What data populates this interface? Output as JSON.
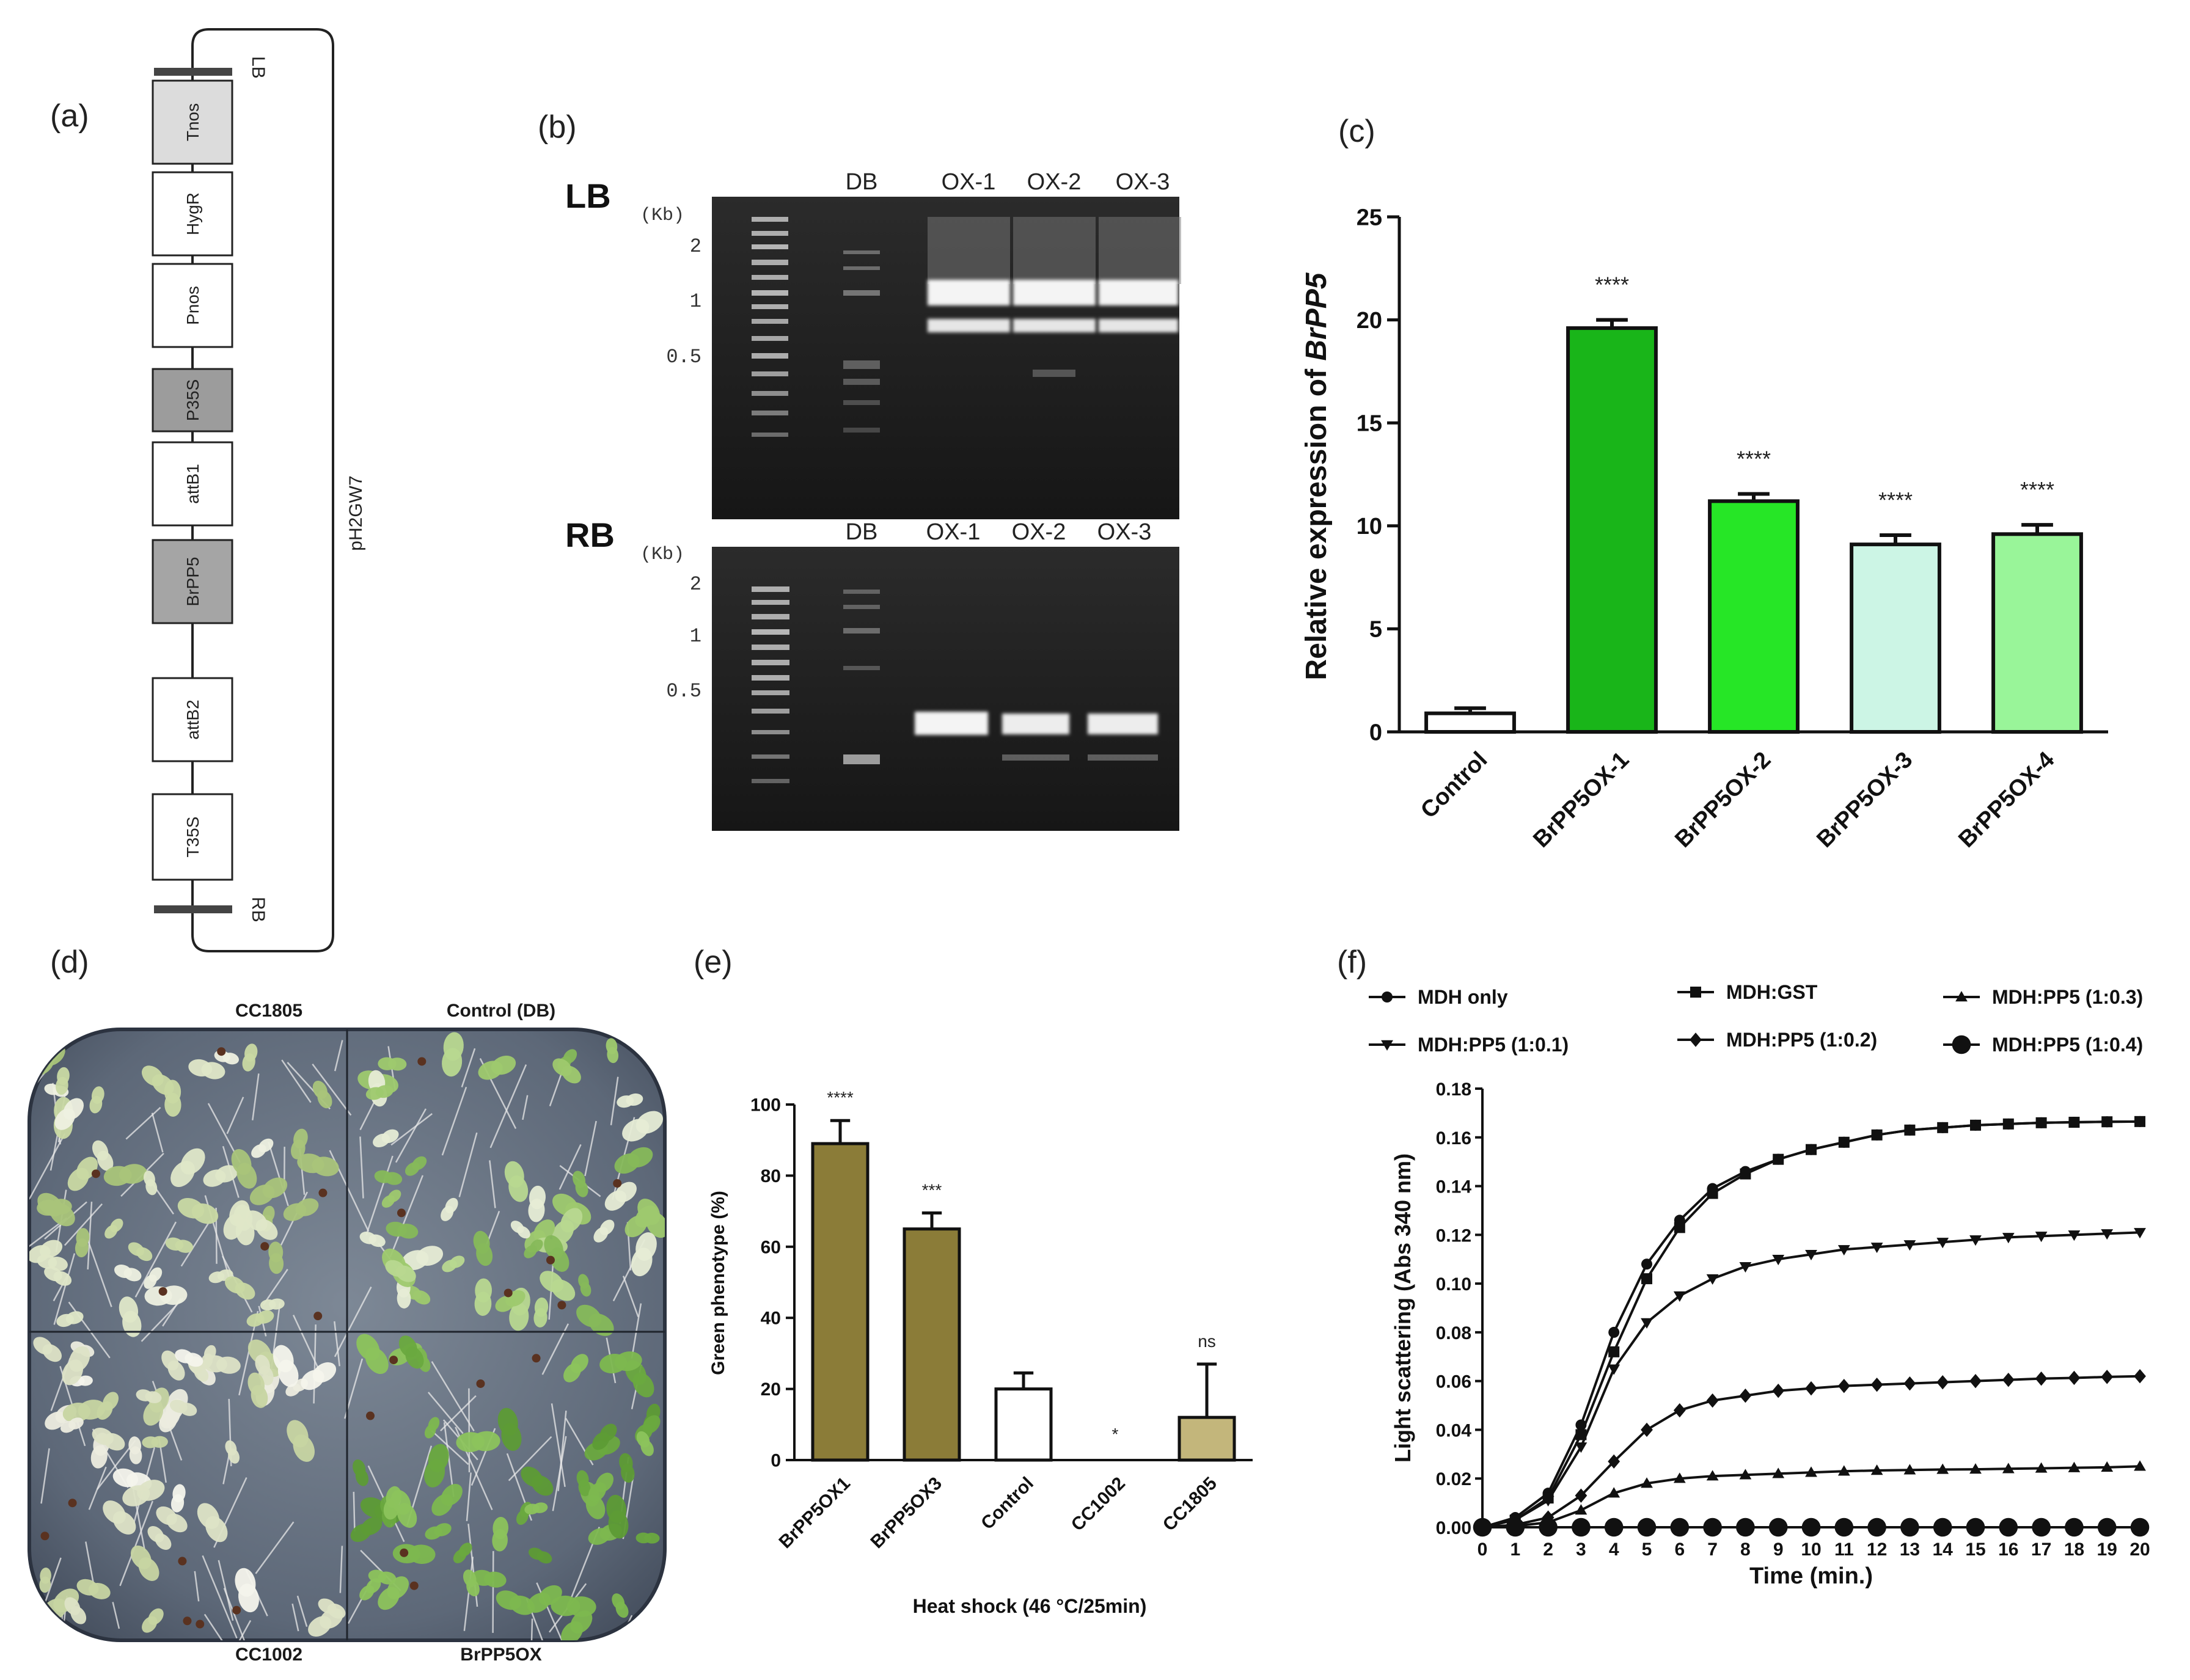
{
  "panels": {
    "a": {
      "label": "(a)",
      "blocks": [
        "Tnos",
        "HygR",
        "Pnos",
        "P35S",
        "attB1",
        "BrPP5",
        "attB2",
        "T35S"
      ],
      "lb": "LB",
      "rb": "RB",
      "vector": "pH2GW7"
    },
    "b": {
      "label": "(b)",
      "lb_gel": {
        "title": "LB",
        "unit": "(Kb)",
        "ladder": [
          "2",
          "1",
          "0.5"
        ],
        "lanes": [
          "DB",
          "OX-1",
          "OX-2",
          "OX-3"
        ]
      },
      "rb_gel": {
        "title": "RB",
        "unit": "(Kb)",
        "ladder": [
          "2",
          "1",
          "0.5"
        ],
        "lanes": [
          "DB",
          "OX-1",
          "OX-2",
          "OX-3"
        ]
      }
    },
    "c": {
      "label": "(c)"
    },
    "d": {
      "label": "(d)",
      "quadrants": [
        "CC1805",
        "Control (DB)",
        "CC1002",
        "BrPP5OX"
      ]
    },
    "e": {
      "label": "(e)"
    },
    "f": {
      "label": "(f)"
    }
  },
  "chart_data": [
    {
      "id": "c",
      "type": "bar",
      "categories": [
        "Control",
        "BrPP5OX-1",
        "BrPP5OX-2",
        "BrPP5OX-3",
        "BrPP5OX-4"
      ],
      "values": [
        0.9,
        19.6,
        11.2,
        9.1,
        9.6
      ],
      "errors": [
        0.25,
        0.4,
        0.35,
        0.45,
        0.45
      ],
      "significance": [
        "",
        "****",
        "****",
        "****",
        "****"
      ],
      "colors": [
        "#ffffff",
        "#19b519",
        "#26e626",
        "#ccf5e5",
        "#99f599"
      ],
      "ylabel_prefix": "Relative expression of ",
      "ylabel_gene": "BrPP5",
      "ylim": [
        0,
        25
      ],
      "yticks": [
        "0",
        "5",
        "10",
        "15",
        "20",
        "25"
      ]
    },
    {
      "id": "e",
      "type": "bar",
      "categories": [
        "BrPP5OX1",
        "BrPP5OX3",
        "Control",
        "CC1002",
        "CC1805"
      ],
      "values": [
        89,
        65,
        20,
        0,
        12
      ],
      "errors": [
        6.5,
        4.5,
        4.5,
        0,
        15
      ],
      "significance": [
        "****",
        "***",
        "",
        "*",
        "ns"
      ],
      "colors": [
        "#8b7c38",
        "#8b7c38",
        "#ffffff",
        "#ffffff",
        "#c3b67b"
      ],
      "ylabel": "Green phenotype (%)",
      "xlabel": "Heat shock (46 °C/25min)",
      "ylim": [
        0,
        100
      ],
      "yticks": [
        "0",
        "20",
        "40",
        "60",
        "80",
        "100"
      ]
    },
    {
      "id": "f",
      "type": "line",
      "x": [
        0,
        1,
        2,
        3,
        4,
        5,
        6,
        7,
        8,
        9,
        10,
        11,
        12,
        13,
        14,
        15,
        16,
        17,
        18,
        19,
        20
      ],
      "xticks": [
        "0",
        "1",
        "2",
        "3",
        "4",
        "5",
        "6",
        "7",
        "8",
        "9",
        "10",
        "11",
        "12",
        "13",
        "14",
        "15",
        "16",
        "17",
        "18",
        "19",
        "20"
      ],
      "xlabel": "Time (min.)",
      "ylabel": "Light scattering (Abs 340 nm)",
      "ylim": [
        0,
        0.18
      ],
      "yticks": [
        "0.00",
        "0.02",
        "0.04",
        "0.06",
        "0.08",
        "0.10",
        "0.12",
        "0.14",
        "0.16",
        "0.18"
      ],
      "legend": "top",
      "series": [
        {
          "name": "MDH only",
          "marker": "circle",
          "values": [
            0,
            0.004,
            0.014,
            0.042,
            0.08,
            0.108,
            0.126,
            0.139,
            0.146,
            0.151,
            0.155,
            0.158,
            0.161,
            0.163,
            0.164,
            0.165,
            0.1655,
            0.166,
            0.1662,
            0.1664,
            0.1665
          ]
        },
        {
          "name": "MDH:GST",
          "marker": "square",
          "values": [
            0,
            0.003,
            0.012,
            0.038,
            0.072,
            0.102,
            0.123,
            0.137,
            0.145,
            0.151,
            0.155,
            0.158,
            0.161,
            0.163,
            0.164,
            0.165,
            0.1655,
            0.166,
            0.1662,
            0.1664,
            0.1665
          ]
        },
        {
          "name": "MDH:PP5 (1:0.3)",
          "marker": "triangle",
          "values": [
            0,
            0.0005,
            0.002,
            0.007,
            0.014,
            0.018,
            0.02,
            0.021,
            0.0215,
            0.022,
            0.0225,
            0.023,
            0.0233,
            0.0235,
            0.0237,
            0.0238,
            0.024,
            0.0242,
            0.0244,
            0.0246,
            0.025
          ]
        },
        {
          "name": "MDH:PP5 (1:0.1)",
          "marker": "triangle-down",
          "values": [
            0,
            0.003,
            0.011,
            0.033,
            0.065,
            0.084,
            0.095,
            0.102,
            0.107,
            0.11,
            0.112,
            0.114,
            0.115,
            0.116,
            0.117,
            0.118,
            0.119,
            0.1195,
            0.12,
            0.1205,
            0.121
          ]
        },
        {
          "name": "MDH:PP5 (1:0.2)",
          "marker": "diamond",
          "values": [
            0,
            0.001,
            0.004,
            0.013,
            0.027,
            0.04,
            0.048,
            0.052,
            0.054,
            0.056,
            0.057,
            0.058,
            0.0585,
            0.059,
            0.0595,
            0.06,
            0.0605,
            0.061,
            0.0613,
            0.0617,
            0.062
          ]
        },
        {
          "name": "MDH:PP5 (1:0.4)",
          "marker": "big-circle",
          "values": [
            0,
            0,
            0,
            0,
            0,
            0,
            0,
            0,
            0,
            0,
            0,
            0,
            0,
            0,
            0,
            0,
            0,
            0,
            0,
            0,
            0
          ]
        }
      ]
    }
  ]
}
